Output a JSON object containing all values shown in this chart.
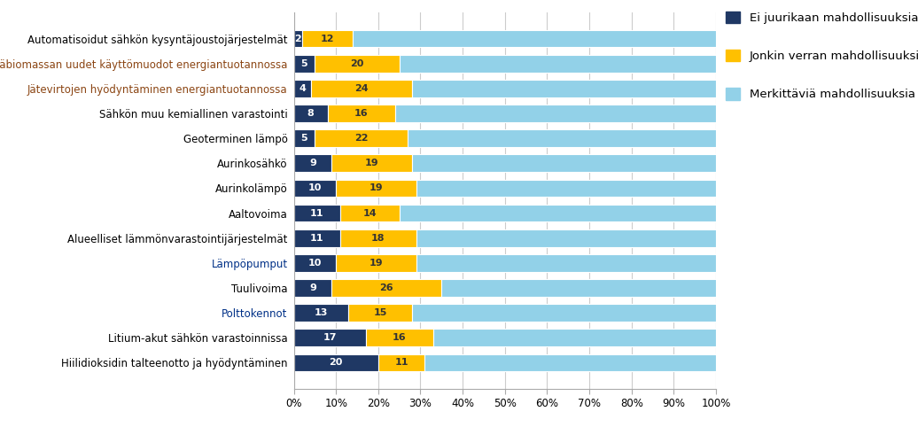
{
  "categories": [
    "Automatisoidut sähkön kysyntäjoustojärjestelmät",
    "Metsäbiomassan uudet käyttömuodot energiantuotannossa",
    "Jätevirtojen hyödyntäminen energiantuotannossa",
    "Sähkön muu kemiallinen varastointi",
    "Geoterminen lämpö",
    "Aurinkosähkö",
    "Aurinkolämpö",
    "Aaltovoima",
    "Alueelliset lämmönvarastointijärjestelmät",
    "Lämpöpumput",
    "Tuulivoima",
    "Polttokennot",
    "Litium-akut sähkön varastoinnissa",
    "Hiilidioksidin talteenotto ja hyödyntäminen"
  ],
  "dark_blue": [
    2,
    5,
    4,
    8,
    5,
    9,
    10,
    11,
    11,
    10,
    9,
    13,
    17,
    20
  ],
  "yellow": [
    12,
    20,
    24,
    16,
    22,
    19,
    19,
    14,
    18,
    19,
    26,
    15,
    16,
    11
  ],
  "light_blue": [
    86,
    75,
    72,
    76,
    73,
    72,
    71,
    75,
    71,
    71,
    65,
    72,
    67,
    69
  ],
  "color_dark_blue": "#1f3864",
  "color_yellow": "#ffc000",
  "color_light_blue": "#92d1e8",
  "legend_labels": [
    "Ei juurikaan mahdollisuuksia",
    "Jonkin verran mahdollisuuksia",
    "Merkittäviä mahdollisuuksia"
  ],
  "special_label_colors": {
    "Metsäbiomassan uudet käyttömuodot energiantuotannossa": "#8B4513",
    "Jätevirtojen hyödyntäminen energiantuotannossa": "#8B4513",
    "Lämpöpumput": "#003087",
    "Polttokennot": "#003087"
  }
}
